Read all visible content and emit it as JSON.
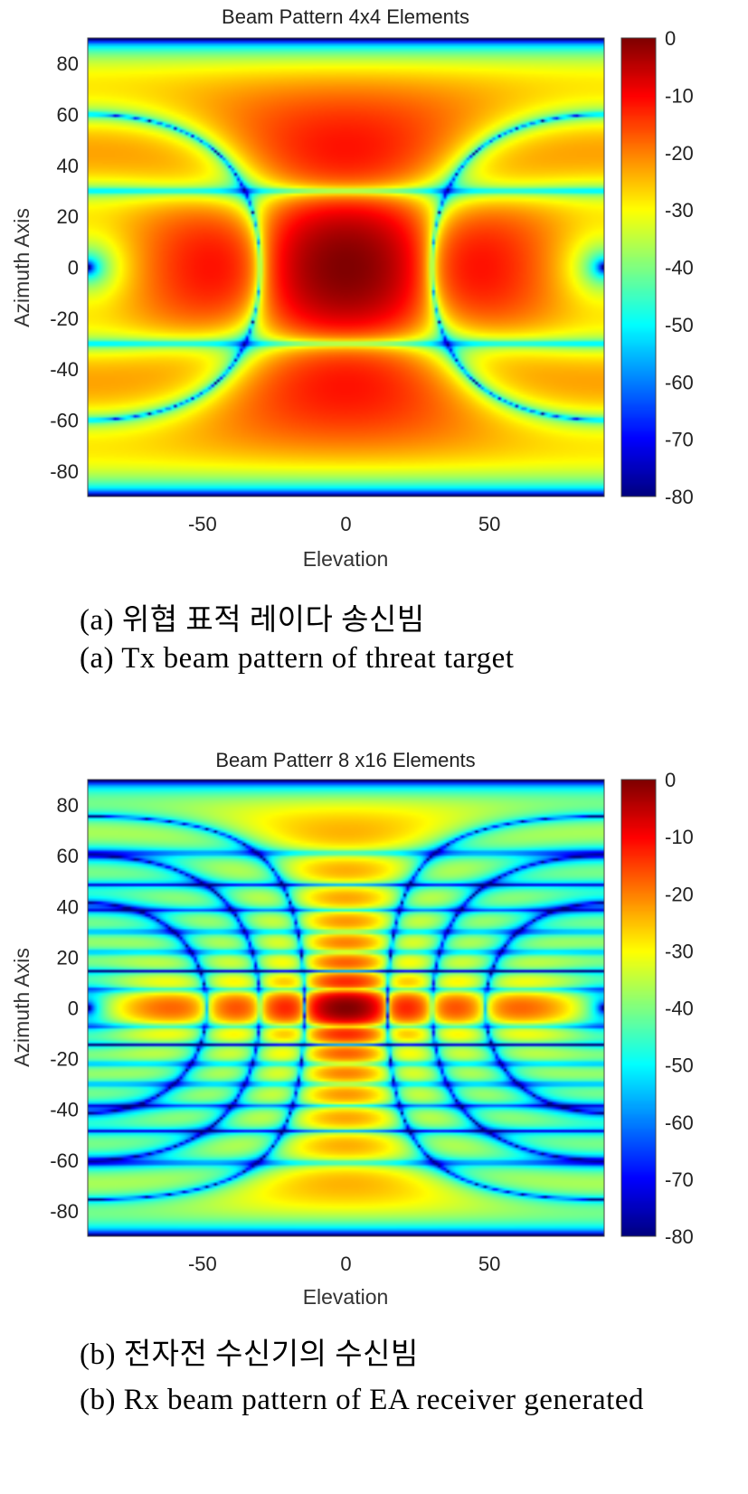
{
  "figures": [
    {
      "caption_ko": "(a) 위협 표적 레이다 송신빔",
      "caption_en": "(a) Tx beam pattern of threat target"
    },
    {
      "caption_ko": "(b) 전자전 수신기의 수신빔",
      "caption_en": "(b) Rx beam pattern of EA receiver generated"
    }
  ],
  "chart_data": [
    {
      "type": "heatmap",
      "title": "Beam Pattern 4x4 Elements",
      "xlabel": "Elevation",
      "ylabel": "Azimuth Axis",
      "xlim": [
        -90,
        90
      ],
      "ylim": [
        -90,
        90
      ],
      "xticks": [
        -50,
        0,
        50
      ],
      "yticks": [
        80,
        60,
        40,
        20,
        0,
        -20,
        -40,
        -60,
        -80
      ],
      "colorbar": {
        "ticks": [
          0,
          -10,
          -20,
          -30,
          -40,
          -50,
          -60,
          -70,
          -80
        ],
        "range": [
          -80,
          0
        ],
        "colormap": "jet"
      },
      "array": {
        "rows": 4,
        "cols": 4
      },
      "peak_db": 0,
      "peak_at": [
        0,
        0
      ]
    },
    {
      "type": "heatmap",
      "title": "Beam Patterr 8 x16 Elements",
      "xlabel": "Elevation",
      "ylabel": "Azimuth Axis",
      "xlim": [
        -90,
        90
      ],
      "ylim": [
        -90,
        90
      ],
      "xticks": [
        -50,
        0,
        50
      ],
      "yticks": [
        80,
        60,
        40,
        20,
        0,
        -20,
        -40,
        -60,
        -80
      ],
      "colorbar": {
        "ticks": [
          0,
          -10,
          -20,
          -30,
          -40,
          -50,
          -60,
          -70,
          -80
        ],
        "range": [
          -80,
          0
        ],
        "colormap": "jet"
      },
      "array": {
        "rows": 16,
        "cols": 8
      },
      "peak_db": 0,
      "peak_at": [
        0,
        0
      ]
    }
  ]
}
